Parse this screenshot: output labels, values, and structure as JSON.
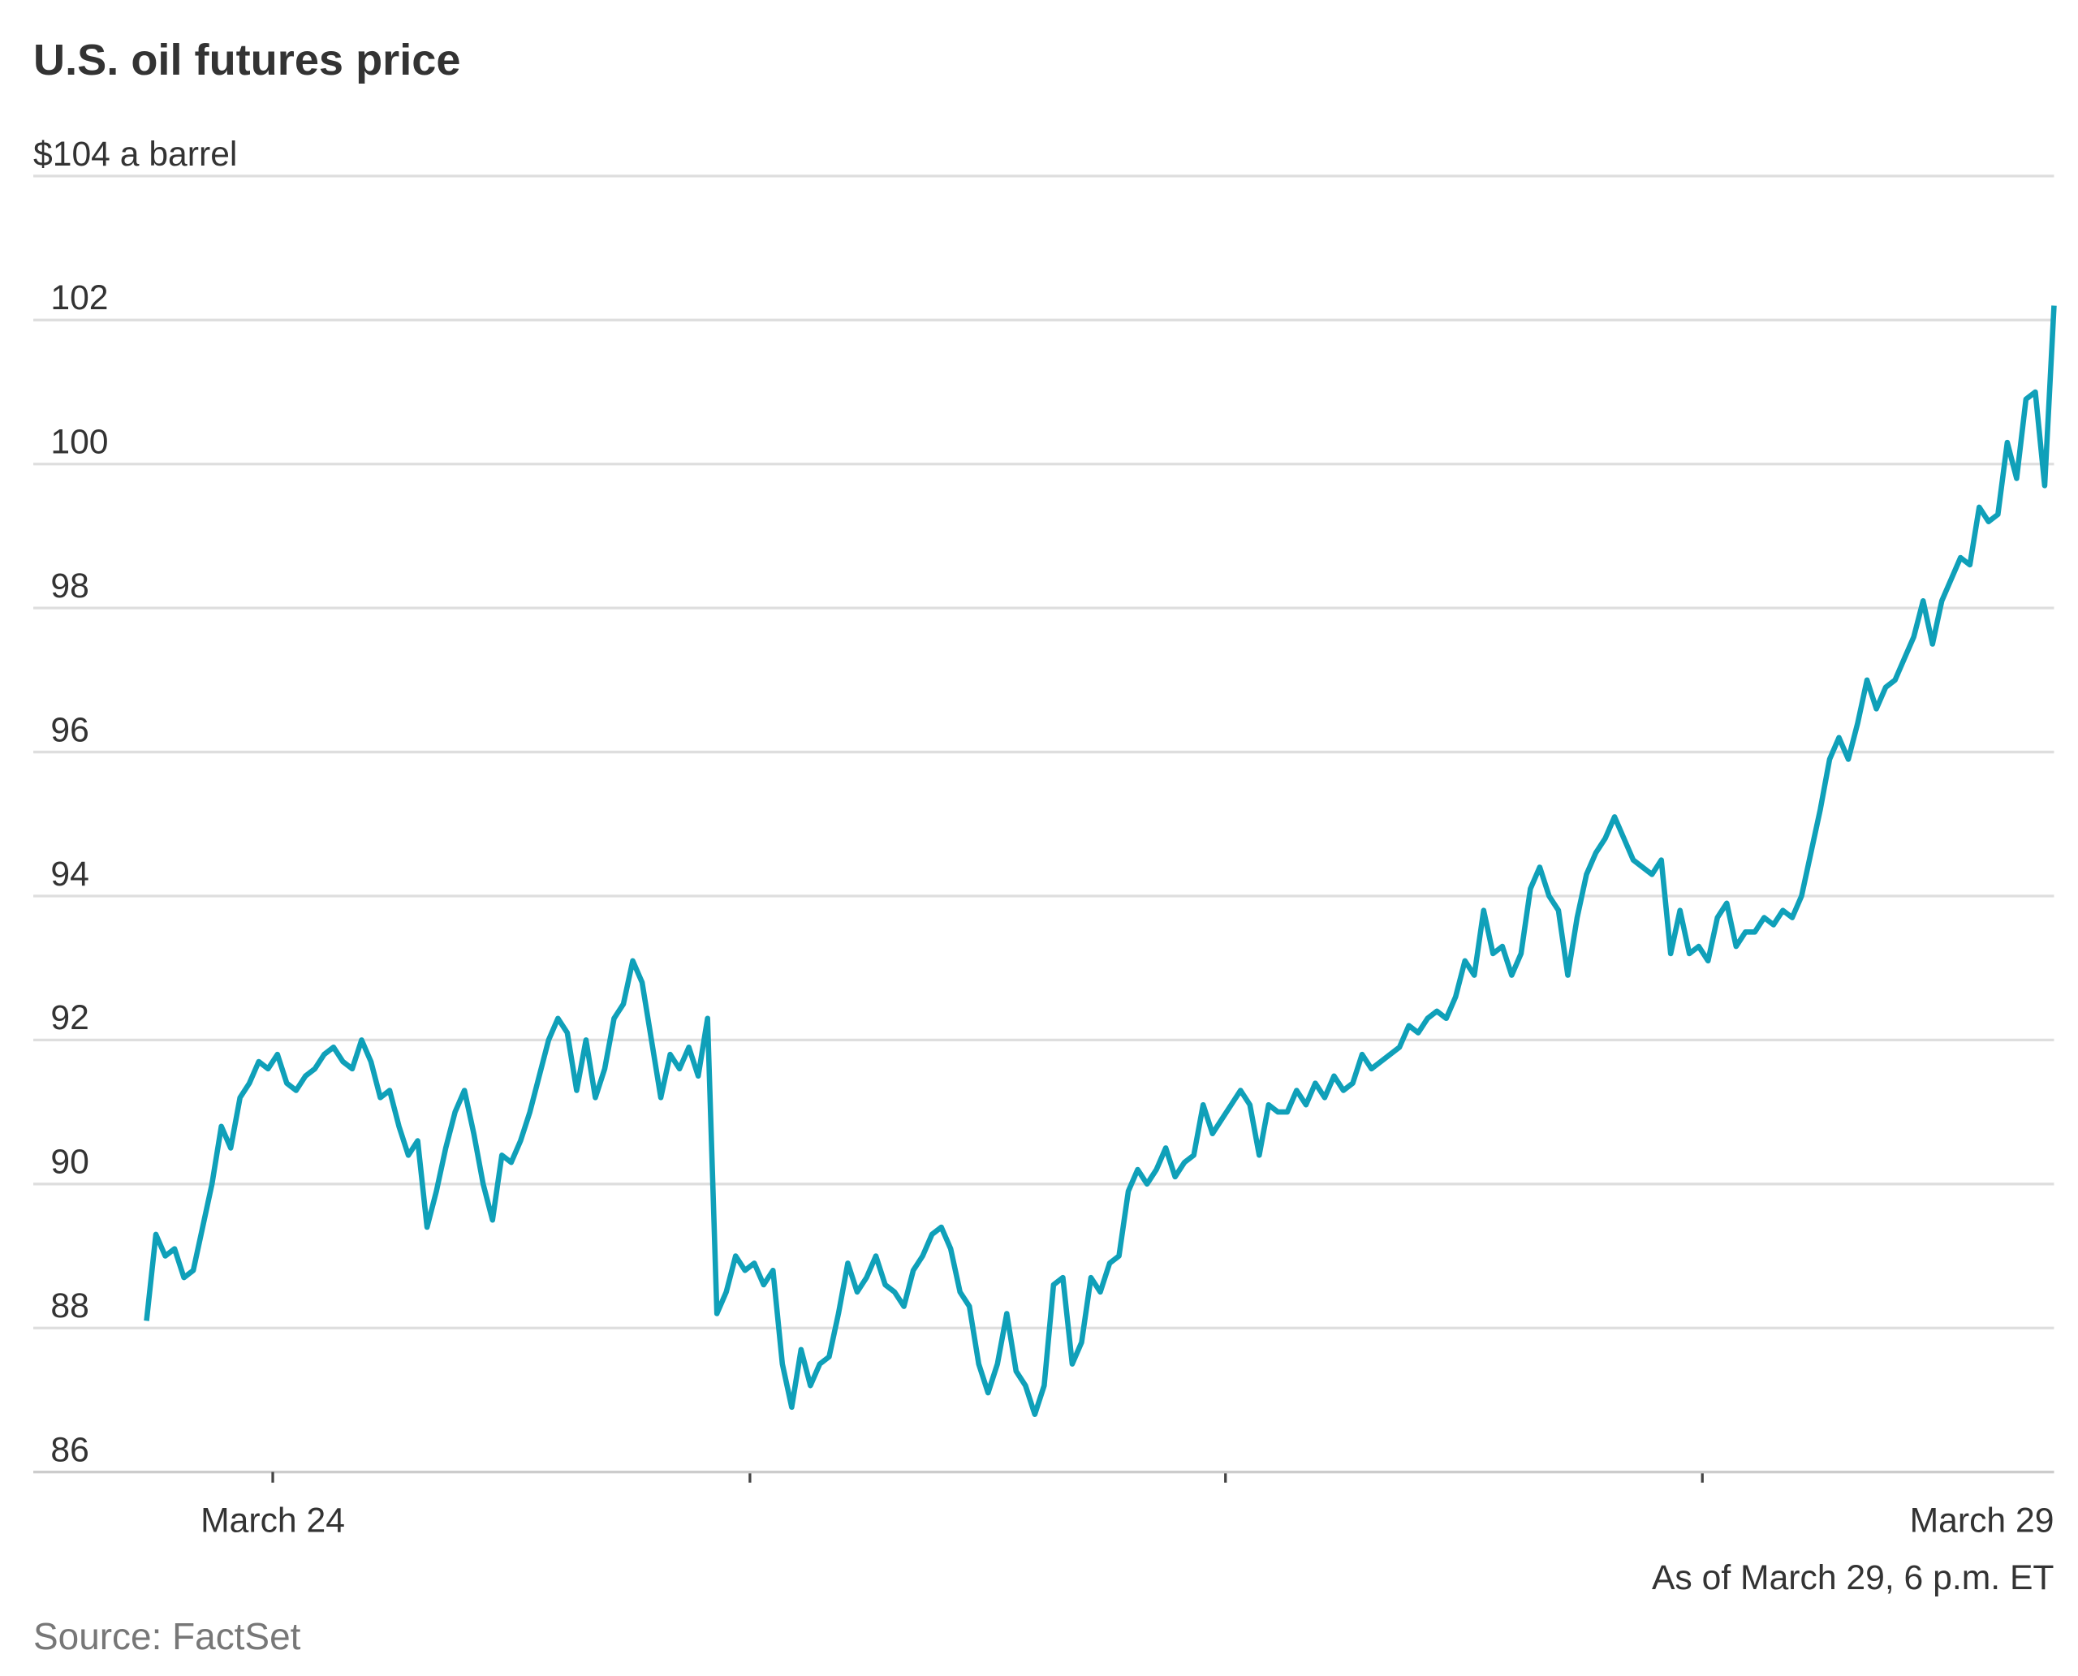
{
  "chart_data": {
    "type": "line",
    "title": "U.S. oil futures price",
    "footnote": "As of March 29, 6 p.m. ET",
    "source": "Source: FactSet",
    "color": "#0fa0b9",
    "grid": true,
    "xlim": [
      0,
      204
    ],
    "xticks": [
      {
        "value": 13.5,
        "label": "March 24"
      },
      {
        "value": 204,
        "label": "March 29"
      }
    ],
    "ylim": [
      86,
      104
    ],
    "yticks": [
      86,
      88,
      90,
      92,
      94,
      96,
      98,
      100,
      102,
      {
        "value": 104,
        "label": "$104 a barrel"
      }
    ],
    "values": [
      88.1,
      89.3,
      89.0,
      89.1,
      88.7,
      88.8,
      89.4,
      90.0,
      90.8,
      90.5,
      91.2,
      91.4,
      91.7,
      91.6,
      91.8,
      91.4,
      91.3,
      91.5,
      91.6,
      91.8,
      91.9,
      91.7,
      91.6,
      92.0,
      91.7,
      91.2,
      91.3,
      90.8,
      90.4,
      90.6,
      89.4,
      89.9,
      90.5,
      91.0,
      91.3,
      90.7,
      90.0,
      89.5,
      90.4,
      90.3,
      90.6,
      91.0,
      91.5,
      92.0,
      92.3,
      92.1,
      91.3,
      92.0,
      91.2,
      91.6,
      92.3,
      92.5,
      93.1,
      92.8,
      92.0,
      91.2,
      91.8,
      91.6,
      91.9,
      91.5,
      92.3,
      88.2,
      88.5,
      89.0,
      88.8,
      88.9,
      88.6,
      88.8,
      87.5,
      86.9,
      87.7,
      87.2,
      87.5,
      87.6,
      88.2,
      88.9,
      88.5,
      88.7,
      89.0,
      88.6,
      88.5,
      88.3,
      88.8,
      89.0,
      89.3,
      89.4,
      89.1,
      88.5,
      88.3,
      87.5,
      87.1,
      87.5,
      88.2,
      87.4,
      87.2,
      86.8,
      87.2,
      88.6,
      88.7,
      87.5,
      87.8,
      88.7,
      88.5,
      88.9,
      89.0,
      89.9,
      90.2,
      90.0,
      90.2,
      90.5,
      90.1,
      90.3,
      90.4,
      91.1,
      90.7,
      90.9,
      91.1,
      91.3,
      91.1,
      90.4,
      91.1,
      91.0,
      91.0,
      91.3,
      91.1,
      91.4,
      91.2,
      91.5,
      91.3,
      91.4,
      91.8,
      91.6,
      91.7,
      91.8,
      91.9,
      92.2,
      92.1,
      92.3,
      92.4,
      92.3,
      92.6,
      93.1,
      92.9,
      93.8,
      93.2,
      93.3,
      92.9,
      93.2,
      94.1,
      94.4,
      94.0,
      93.8,
      92.9,
      93.7,
      94.3,
      94.6,
      94.8,
      95.1,
      94.8,
      94.5,
      94.4,
      94.3,
      94.5,
      93.2,
      93.8,
      93.2,
      93.3,
      93.1,
      93.7,
      93.9,
      93.3,
      93.5,
      93.5,
      93.7,
      93.6,
      93.8,
      93.7,
      94.0,
      94.6,
      95.2,
      95.9,
      96.2,
      95.9,
      96.4,
      97.0,
      96.6,
      96.9,
      97.0,
      97.3,
      97.6,
      98.1,
      97.5,
      98.1,
      98.4,
      98.7,
      98.6,
      99.4,
      99.2,
      99.3,
      100.3,
      99.8,
      100.9,
      101.0,
      99.7,
      102.2
    ]
  }
}
